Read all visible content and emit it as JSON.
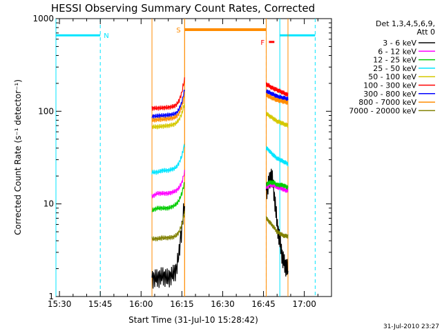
{
  "chart_data": {
    "type": "line",
    "title": "HESSI Observing Summary Count Rates, Corrected",
    "xlabel": "Start Time (31-Jul-10 15:28:42)",
    "ylabel": "Corrected Count Rate (s⁻¹ detector⁻¹)",
    "y_scale": "log",
    "ylim": [
      1,
      1000
    ],
    "xlim": [
      "15:28:42",
      "17:10:00"
    ],
    "x_tick_labels": [
      "15:30",
      "15:45",
      "16:00",
      "16:15",
      "16:30",
      "16:45",
      "17:00"
    ],
    "y_tick_labels": [
      "1",
      "10",
      "100",
      "1000"
    ],
    "legend": {
      "position": "right",
      "header_lines": [
        "Det 1,3,4,5,6,9,",
        "Att 0"
      ],
      "items": [
        {
          "label": "3 - 6 keV",
          "color": "#000000"
        },
        {
          "label": "6 - 12 keV",
          "color": "#ff00ff"
        },
        {
          "label": "12 - 25 keV",
          "color": "#00cc00"
        },
        {
          "label": "25 - 50 keV",
          "color": "#00e5ff"
        },
        {
          "label": "50 - 100 keV",
          "color": "#d4c800"
        },
        {
          "label": "100 - 300 keV",
          "color": "#ff0000"
        },
        {
          "label": "300 - 800 keV",
          "color": "#0000ff"
        },
        {
          "label": "800 - 7000 keV",
          "color": "#ff8c00"
        },
        {
          "label": "7000 - 20000 keV",
          "color": "#808000"
        }
      ]
    },
    "annotations": {
      "night_label": "N",
      "saa_label": "S",
      "flare_label": "F",
      "night_color": "#00e5ff",
      "saa_color": "#ff8c00",
      "flare_color": "#ff0000",
      "night_level": 660,
      "saa_level": 760,
      "flare_level": 560,
      "night_intervals": [
        [
          "15:28:42",
          "15:45:00"
        ],
        [
          "16:51:00",
          "17:04:00"
        ]
      ],
      "saa_interval": [
        "16:16:00",
        "16:46:00"
      ],
      "flare_marker": [
        "16:47:00",
        "16:49:00"
      ]
    },
    "data_segments": [
      [
        "16:04:00",
        "16:16:00"
      ],
      [
        "16:46:00",
        "16:54:00"
      ]
    ],
    "series": [
      {
        "name": "3 - 6 keV",
        "color": "#000000",
        "seg1": {
          "x": [
            "16:04",
            "16:06",
            "16:08",
            "16:10",
            "16:12",
            "16:13",
            "16:14",
            "16:15",
            "16:16"
          ],
          "y": [
            1.6,
            1.6,
            1.7,
            1.6,
            1.8,
            2.0,
            3.0,
            5.5,
            10
          ]
        },
        "seg2": {
          "x": [
            "16:46",
            "16:47",
            "16:48",
            "16:49",
            "16:50",
            "16:51",
            "16:52",
            "16:53",
            "16:54"
          ],
          "y": [
            14,
            17,
            21,
            12,
            6,
            4,
            2.6,
            2.2,
            2.0
          ]
        }
      },
      {
        "name": "6 - 12 keV",
        "color": "#ff00ff",
        "seg1": {
          "x": [
            "16:04",
            "16:06",
            "16:08",
            "16:10",
            "16:12",
            "16:13",
            "16:14",
            "16:15",
            "16:16"
          ],
          "y": [
            12,
            13,
            13,
            13,
            13.5,
            14,
            15,
            17,
            22
          ]
        },
        "seg2": {
          "x": [
            "16:46",
            "16:47",
            "16:48",
            "16:49",
            "16:50",
            "16:51",
            "16:52",
            "16:53",
            "16:54"
          ],
          "y": [
            15,
            16,
            16,
            16,
            15,
            15,
            14.5,
            14,
            14
          ]
        }
      },
      {
        "name": "12 - 25 keV",
        "color": "#00cc00",
        "seg1": {
          "x": [
            "16:04",
            "16:06",
            "16:08",
            "16:10",
            "16:12",
            "16:13",
            "16:14",
            "16:15",
            "16:16"
          ],
          "y": [
            8.5,
            9,
            9,
            9,
            9.5,
            10,
            11,
            13,
            17
          ]
        },
        "seg2": {
          "x": [
            "16:46",
            "16:47",
            "16:48",
            "16:49",
            "16:50",
            "16:51",
            "16:52",
            "16:53",
            "16:54"
          ],
          "y": [
            16,
            17,
            17,
            17,
            16,
            16,
            16,
            15.5,
            15
          ]
        }
      },
      {
        "name": "25 - 50 keV",
        "color": "#00e5ff",
        "seg1": {
          "x": [
            "16:04",
            "16:06",
            "16:08",
            "16:10",
            "16:12",
            "16:13",
            "16:14",
            "16:15",
            "16:16"
          ],
          "y": [
            22,
            22,
            23,
            23,
            24,
            25,
            28,
            33,
            44
          ]
        },
        "seg2": {
          "x": [
            "16:46",
            "16:47",
            "16:48",
            "16:49",
            "16:50",
            "16:51",
            "16:52",
            "16:53",
            "16:54"
          ],
          "y": [
            40,
            38,
            35,
            33,
            31,
            30,
            29,
            28,
            27
          ]
        }
      },
      {
        "name": "50 - 100 keV",
        "color": "#d4c800",
        "seg1": {
          "x": [
            "16:04",
            "16:06",
            "16:08",
            "16:10",
            "16:12",
            "16:13",
            "16:14",
            "16:15",
            "16:16"
          ],
          "y": [
            68,
            68,
            69,
            70,
            72,
            75,
            82,
            95,
            120
          ]
        },
        "seg2": {
          "x": [
            "16:46",
            "16:47",
            "16:48",
            "16:49",
            "16:50",
            "16:51",
            "16:52",
            "16:53",
            "16:54"
          ],
          "y": [
            95,
            90,
            86,
            82,
            78,
            76,
            74,
            72,
            70
          ]
        }
      },
      {
        "name": "100 - 300 keV",
        "color": "#ff0000",
        "seg1": {
          "x": [
            "16:04",
            "16:06",
            "16:08",
            "16:10",
            "16:12",
            "16:13",
            "16:14",
            "16:15",
            "16:16"
          ],
          "y": [
            108,
            108,
            109,
            110,
            113,
            118,
            130,
            160,
            220
          ]
        },
        "seg2": {
          "x": [
            "16:46",
            "16:47",
            "16:48",
            "16:49",
            "16:50",
            "16:51",
            "16:52",
            "16:53",
            "16:54"
          ],
          "y": [
            195,
            190,
            180,
            175,
            170,
            165,
            160,
            155,
            150
          ]
        }
      },
      {
        "name": "300 - 800 keV",
        "color": "#0000ff",
        "seg1": {
          "x": [
            "16:04",
            "16:06",
            "16:08",
            "16:10",
            "16:12",
            "16:13",
            "16:14",
            "16:15",
            "16:16"
          ],
          "y": [
            88,
            89,
            90,
            91,
            93,
            96,
            105,
            125,
            170
          ]
        },
        "seg2": {
          "x": [
            "16:46",
            "16:47",
            "16:48",
            "16:49",
            "16:50",
            "16:51",
            "16:52",
            "16:53",
            "16:54"
          ],
          "y": [
            165,
            160,
            155,
            150,
            145,
            142,
            140,
            138,
            136
          ]
        }
      },
      {
        "name": "800 - 7000 keV",
        "color": "#ff8c00",
        "seg1": {
          "x": [
            "16:04",
            "16:06",
            "16:08",
            "16:10",
            "16:12",
            "16:13",
            "16:14",
            "16:15",
            "16:16"
          ],
          "y": [
            80,
            81,
            82,
            83,
            85,
            88,
            95,
            112,
            150
          ]
        },
        "seg2": {
          "x": [
            "16:46",
            "16:47",
            "16:48",
            "16:49",
            "16:50",
            "16:51",
            "16:52",
            "16:53",
            "16:54"
          ],
          "y": [
            150,
            145,
            140,
            136,
            132,
            130,
            128,
            126,
            124
          ]
        }
      },
      {
        "name": "7000 - 20000 keV",
        "color": "#808000",
        "seg1": {
          "x": [
            "16:04",
            "16:06",
            "16:08",
            "16:10",
            "16:12",
            "16:13",
            "16:14",
            "16:15",
            "16:16"
          ],
          "y": [
            4.2,
            4.2,
            4.3,
            4.3,
            4.4,
            4.6,
            5.0,
            6.0,
            8.0
          ]
        },
        "seg2": {
          "x": [
            "16:46",
            "16:47",
            "16:48",
            "16:49",
            "16:50",
            "16:51",
            "16:52",
            "16:53",
            "16:54"
          ],
          "y": [
            7.0,
            6.5,
            6.0,
            5.5,
            5.0,
            4.8,
            4.6,
            4.5,
            4.5
          ]
        }
      }
    ]
  },
  "footer": {
    "timestamp": "31-Jul-2010 23:27"
  }
}
